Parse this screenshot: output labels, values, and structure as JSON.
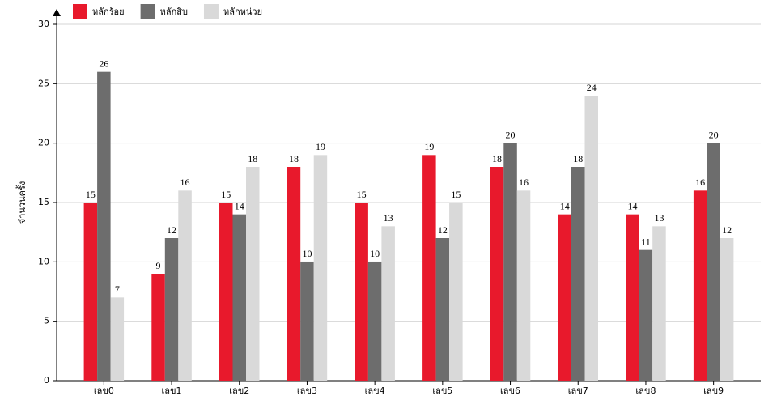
{
  "chart_data": {
    "type": "bar",
    "y_label": "จำนวนครั้ง",
    "categories": [
      "เลข0",
      "เลข1",
      "เลข2",
      "เลข3",
      "เลข4",
      "เลข5",
      "เลข6",
      "เลข7",
      "เลข8",
      "เลข9"
    ],
    "series": [
      {
        "name": "หลักร้อย",
        "color": "#e8192c",
        "values": [
          15,
          9,
          15,
          18,
          15,
          19,
          18,
          14,
          14,
          16
        ]
      },
      {
        "name": "หลักสิบ",
        "color": "#6d6d6d",
        "values": [
          26,
          12,
          14,
          10,
          10,
          12,
          20,
          18,
          11,
          20
        ]
      },
      {
        "name": "หลักหน่วย",
        "color": "#d9d9d9",
        "values": [
          7,
          16,
          18,
          19,
          13,
          15,
          16,
          24,
          13,
          12
        ]
      }
    ],
    "ylim": [
      0,
      30
    ],
    "yticks": [
      0,
      5,
      10,
      15,
      20,
      25,
      30
    ],
    "grid": true
  }
}
